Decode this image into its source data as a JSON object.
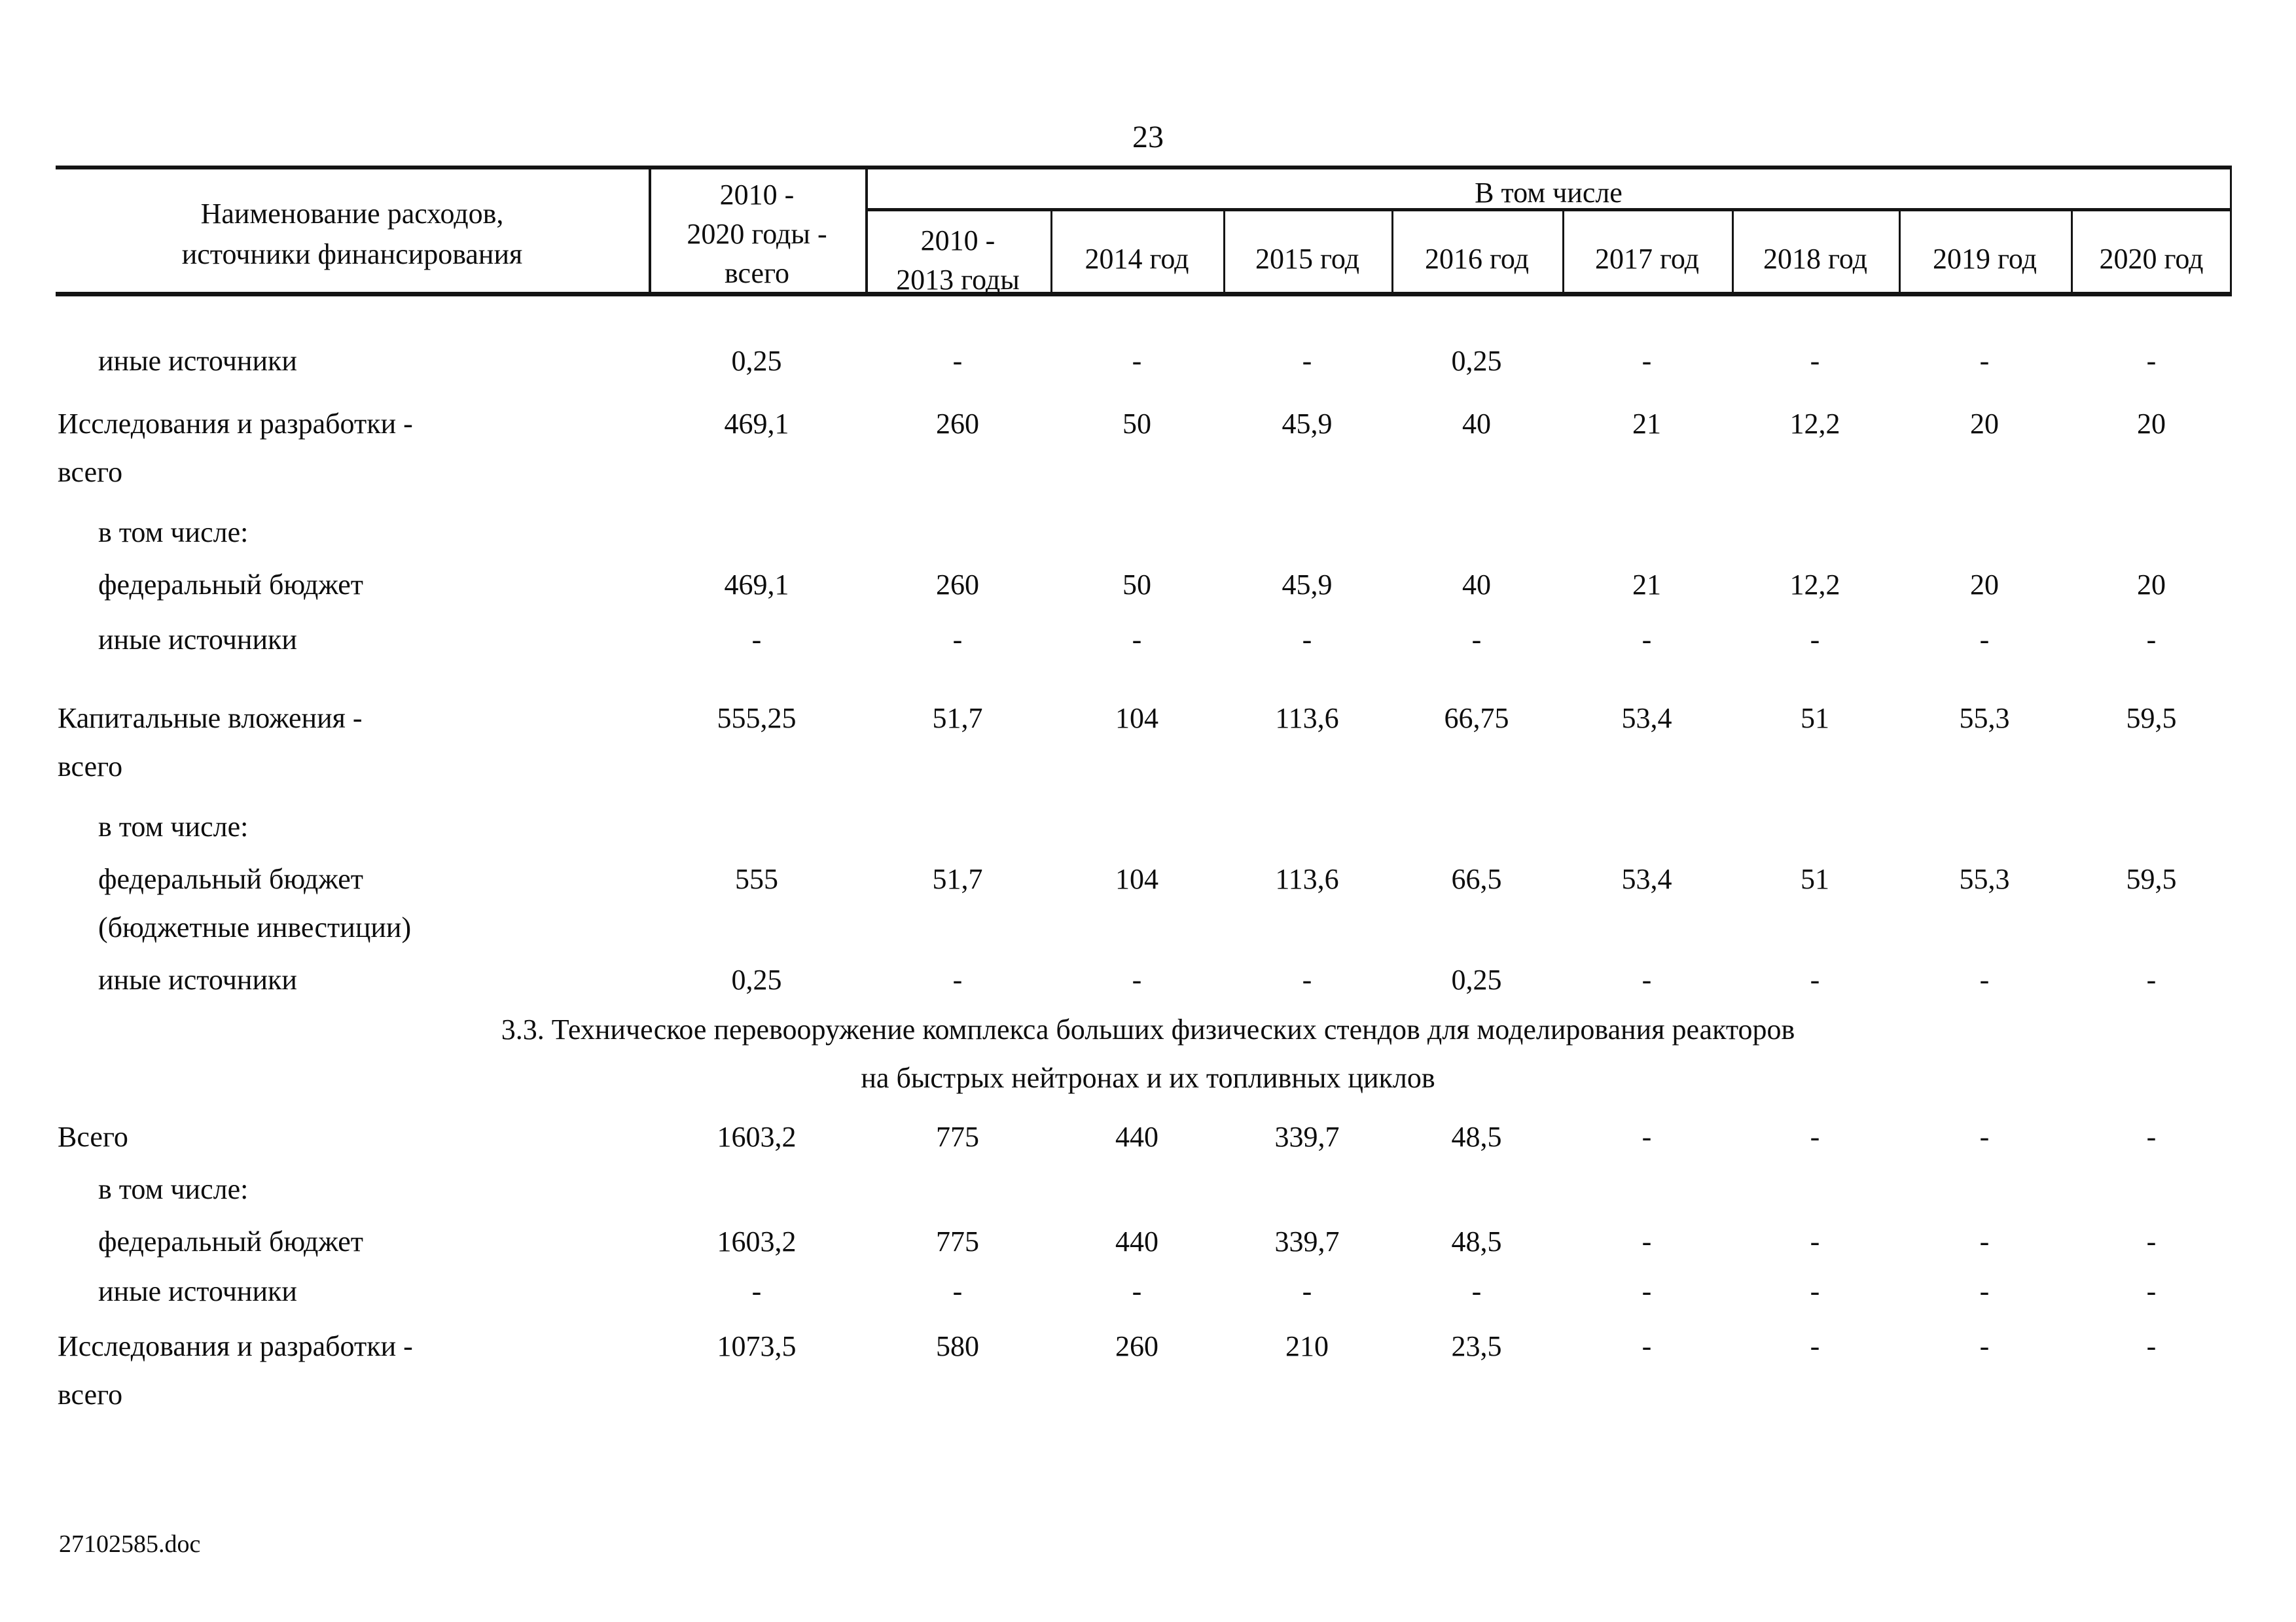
{
  "page_number": "23",
  "footer_filename": "27102585.doc",
  "table": {
    "header": {
      "name_col": "Наименование расходов,\nисточники финансирования",
      "total_col": "2010 -\n2020 годы -\nвсего",
      "group_label": "В том числе",
      "year_cols": [
        "2010 -\n2013 годы",
        "2014 год",
        "2015 год",
        "2016 год",
        "2017 год",
        "2018 год",
        "2019 год",
        "2020 год"
      ]
    },
    "rows": [
      {
        "label": "иные источники",
        "indent": true,
        "values": [
          "0,25",
          "-",
          "-",
          "-",
          "0,25",
          "-",
          "-",
          "-",
          "-"
        ]
      },
      {
        "label": "Исследования и разработки -",
        "label2": "всего",
        "indent": false,
        "values": [
          "469,1",
          "260",
          "50",
          "45,9",
          "40",
          "21",
          "12,2",
          "20",
          "20"
        ]
      },
      {
        "label": "в том числе:",
        "indent": true,
        "values": []
      },
      {
        "label": "федеральный бюджет",
        "indent": true,
        "values": [
          "469,1",
          "260",
          "50",
          "45,9",
          "40",
          "21",
          "12,2",
          "20",
          "20"
        ]
      },
      {
        "label": "иные источники",
        "indent": true,
        "values": [
          "-",
          "-",
          "-",
          "-",
          "-",
          "-",
          "-",
          "-",
          "-"
        ]
      },
      {
        "label": "Капитальные вложения -",
        "label2": "всего",
        "indent": false,
        "values": [
          "555,25",
          "51,7",
          "104",
          "113,6",
          "66,75",
          "53,4",
          "51",
          "55,3",
          "59,5"
        ]
      },
      {
        "label": "в том числе:",
        "indent": true,
        "values": []
      },
      {
        "label": "федеральный бюджет",
        "label2": "(бюджетные инвестиции)",
        "indent": true,
        "values": [
          "555",
          "51,7",
          "104",
          "113,6",
          "66,5",
          "53,4",
          "51",
          "55,3",
          "59,5"
        ]
      },
      {
        "label": "иные источники",
        "indent": true,
        "values": [
          "0,25",
          "-",
          "-",
          "-",
          "0,25",
          "-",
          "-",
          "-",
          "-"
        ]
      },
      {
        "section": true,
        "lines": [
          "3.3. Техническое перевооружение комплекса больших физических стендов для моделирования реакторов",
          "на быстрых нейтронах и их топливных циклов"
        ]
      },
      {
        "label": "Всего",
        "indent": false,
        "values": [
          "1603,2",
          "775",
          "440",
          "339,7",
          "48,5",
          "-",
          "-",
          "-",
          "-"
        ]
      },
      {
        "label": "в том числе:",
        "indent": true,
        "values": []
      },
      {
        "label": "федеральный бюджет",
        "indent": true,
        "values": [
          "1603,2",
          "775",
          "440",
          "339,7",
          "48,5",
          "-",
          "-",
          "-",
          "-"
        ]
      },
      {
        "label": "иные источники",
        "indent": true,
        "values": [
          "-",
          "-",
          "-",
          "-",
          "-",
          "-",
          "-",
          "-",
          "-"
        ]
      },
      {
        "label": "Исследования и разработки -",
        "label2": "всего",
        "indent": false,
        "values": [
          "1073,5",
          "580",
          "260",
          "210",
          "23,5",
          "-",
          "-",
          "-",
          "-"
        ]
      }
    ]
  }
}
